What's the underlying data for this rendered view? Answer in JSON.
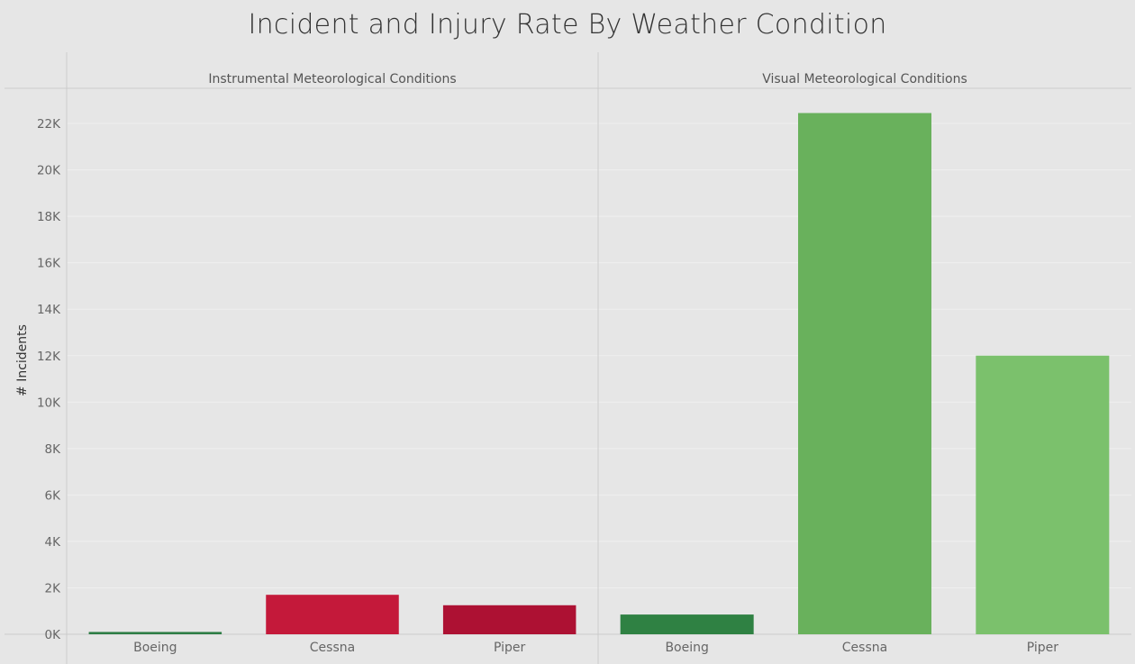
{
  "chart_data": {
    "type": "bar",
    "title": "Incident and Injury Rate By Weather Condition",
    "ylabel": "# Incidents",
    "ylim": [
      0,
      22500
    ],
    "yticks": [
      0,
      2000,
      4000,
      6000,
      8000,
      10000,
      12000,
      14000,
      16000,
      18000,
      20000,
      22000
    ],
    "ytick_labels": [
      "0K",
      "2K",
      "4K",
      "6K",
      "8K",
      "10K",
      "12K",
      "14K",
      "16K",
      "18K",
      "20K",
      "22K"
    ],
    "grid": true,
    "panels": [
      {
        "name": "Instrumental Meteorological Conditions",
        "categories": [
          "Boeing",
          "Cessna",
          "Piper"
        ],
        "values": [
          100,
          1700,
          1250
        ],
        "colors": [
          "#2e7d45",
          "#c4193a",
          "#ad1133"
        ]
      },
      {
        "name": "Visual Meteorological Conditions",
        "categories": [
          "Boeing",
          "Cessna",
          "Piper"
        ],
        "values": [
          850,
          22450,
          12000
        ],
        "colors": [
          "#2f8143",
          "#69b15c",
          "#7bc16c"
        ]
      }
    ]
  }
}
